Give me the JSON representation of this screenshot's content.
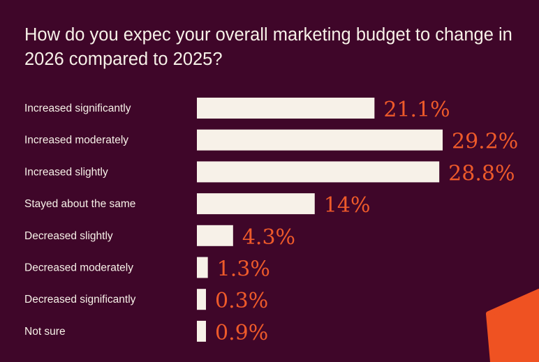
{
  "chart_data": {
    "type": "bar",
    "orientation": "horizontal",
    "title": "How do you expec your overall marketing budget to change in 2026 compared to 2025?",
    "categories": [
      "Increased significantly",
      "Increased moderately",
      "Increased slightly",
      "Stayed about the same",
      "Decreased slightly",
      "Decreased moderately",
      "Decreased significantly",
      "Not sure"
    ],
    "values": [
      21.1,
      29.2,
      28.8,
      14,
      4.3,
      1.3,
      0.3,
      0.9
    ],
    "value_labels": [
      "21.1%",
      "29.2%",
      "28.8%",
      "14%",
      "4.3%",
      "1.3%",
      "0.3%",
      "0.9%"
    ],
    "grid": false,
    "colors": {
      "background": "#3f0629",
      "bar": "#f7f1e8",
      "value_label": "#ee5a2a",
      "accent_shape": "#ef5222"
    }
  }
}
